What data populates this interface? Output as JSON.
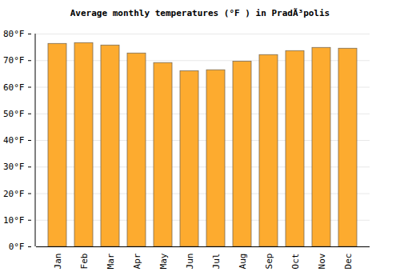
{
  "chart_data": {
    "type": "bar",
    "title": "Average monthly temperatures (°F ) in PradÃ³polis",
    "categories": [
      "Jan",
      "Feb",
      "Mar",
      "Apr",
      "May",
      "Jun",
      "Jul",
      "Aug",
      "Sep",
      "Oct",
      "Nov",
      "Dec"
    ],
    "values": [
      76.3,
      76.6,
      75.7,
      72.7,
      69.1,
      66.0,
      66.4,
      69.6,
      72.1,
      73.6,
      74.8,
      74.5
    ],
    "color": "#fdab2f",
    "ylim": [
      0,
      80
    ],
    "yticks": [
      {
        "value": 0,
        "label": "0°F"
      },
      {
        "value": 10,
        "label": "10°F"
      },
      {
        "value": 20,
        "label": "20°F"
      },
      {
        "value": 30,
        "label": "30°F"
      },
      {
        "value": 40,
        "label": "40°F"
      },
      {
        "value": 50,
        "label": "50°F"
      },
      {
        "value": 60,
        "label": "60°F"
      },
      {
        "value": 70,
        "label": "70°F"
      },
      {
        "value": 80,
        "label": "80°F"
      }
    ],
    "grid": true
  }
}
